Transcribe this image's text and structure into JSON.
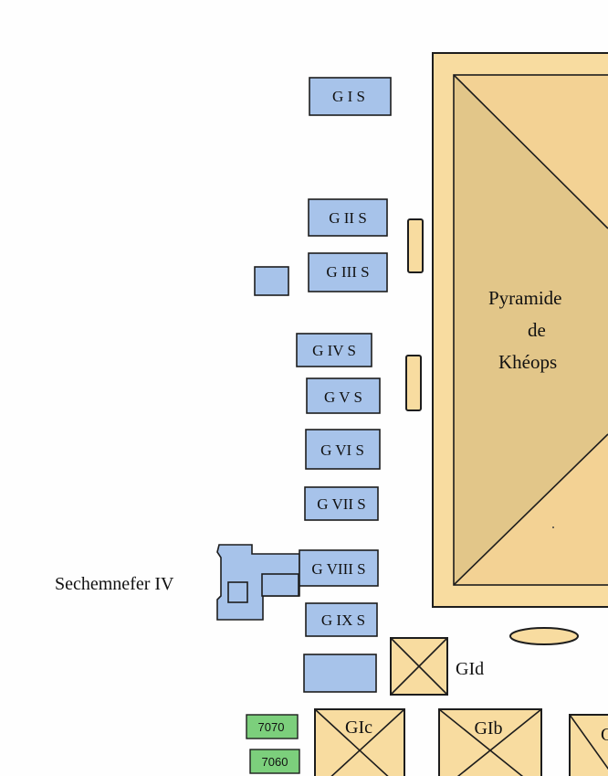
{
  "map": {
    "pyramid": {
      "line1": "Pyramide",
      "line2": "de",
      "line3": "Khéops"
    },
    "mastabas": [
      {
        "label": "G I S"
      },
      {
        "label": "G II S"
      },
      {
        "label": "G III S"
      },
      {
        "label": "G IV S"
      },
      {
        "label": "G V S"
      },
      {
        "label": "G VI S"
      },
      {
        "label": "G VII S"
      },
      {
        "label": "G VIII S"
      },
      {
        "label": "G IX S"
      }
    ],
    "tomb_label": "Sechemnefer IV",
    "queen_pyramids": [
      {
        "label": "GId"
      },
      {
        "label": "GIc"
      },
      {
        "label": "GIb"
      },
      {
        "label": "G"
      }
    ],
    "tomb_numbers": [
      {
        "label": "7070"
      },
      {
        "label": "7060"
      }
    ],
    "colors": {
      "mastaba_fill": "#a7c3ea",
      "pyramid_fill": "#f8dca0",
      "numbered_tomb_fill": "#7ccf7c"
    }
  }
}
